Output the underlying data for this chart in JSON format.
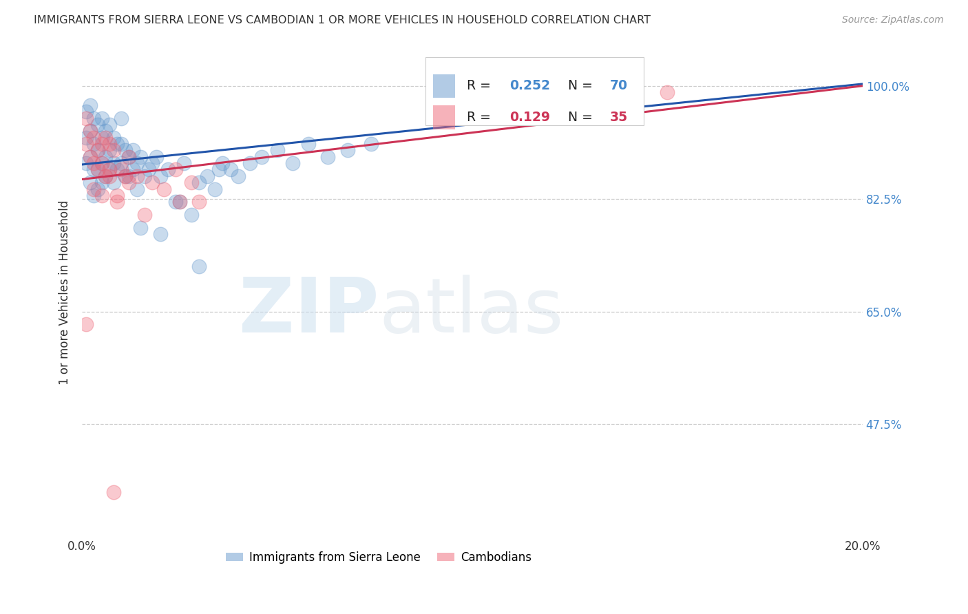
{
  "title": "IMMIGRANTS FROM SIERRA LEONE VS CAMBODIAN 1 OR MORE VEHICLES IN HOUSEHOLD CORRELATION CHART",
  "source": "Source: ZipAtlas.com",
  "ylabel": "1 or more Vehicles in Household",
  "xlim": [
    0.0,
    0.2
  ],
  "ylim": [
    0.3,
    1.06
  ],
  "xtick_labels": [
    "0.0%",
    "20.0%"
  ],
  "ytick_labels": [
    "100.0%",
    "82.5%",
    "65.0%",
    "47.5%"
  ],
  "ytick_values": [
    1.0,
    0.825,
    0.65,
    0.475
  ],
  "grid_color": "#cccccc",
  "background_color": "#ffffff",
  "sierra_leone_color": "#6699cc",
  "cambodian_color": "#ee6677",
  "sierra_leone_N": 70,
  "cambodian_N": 35,
  "sl_line_x": [
    0.0,
    0.2
  ],
  "sl_line_y": [
    0.878,
    1.003
  ],
  "cam_line_x": [
    0.0,
    0.2
  ],
  "cam_line_y": [
    0.855,
    1.0
  ],
  "sierra_leone_x": [
    0.001,
    0.001,
    0.001,
    0.002,
    0.002,
    0.002,
    0.002,
    0.003,
    0.003,
    0.003,
    0.003,
    0.004,
    0.004,
    0.004,
    0.004,
    0.005,
    0.005,
    0.005,
    0.005,
    0.006,
    0.006,
    0.006,
    0.007,
    0.007,
    0.007,
    0.008,
    0.008,
    0.008,
    0.009,
    0.009,
    0.01,
    0.01,
    0.01,
    0.011,
    0.011,
    0.012,
    0.012,
    0.013,
    0.013,
    0.014,
    0.014,
    0.015,
    0.016,
    0.017,
    0.018,
    0.019,
    0.02,
    0.022,
    0.024,
    0.026,
    0.028,
    0.03,
    0.032,
    0.034,
    0.036,
    0.038,
    0.04,
    0.043,
    0.046,
    0.05,
    0.054,
    0.058,
    0.063,
    0.068,
    0.074,
    0.015,
    0.02,
    0.025,
    0.03,
    0.035
  ],
  "sierra_leone_y": [
    0.96,
    0.92,
    0.88,
    0.97,
    0.93,
    0.89,
    0.85,
    0.95,
    0.91,
    0.87,
    0.83,
    0.94,
    0.9,
    0.87,
    0.84,
    0.95,
    0.92,
    0.88,
    0.85,
    0.93,
    0.89,
    0.86,
    0.94,
    0.9,
    0.87,
    0.92,
    0.88,
    0.85,
    0.91,
    0.87,
    0.95,
    0.91,
    0.88,
    0.9,
    0.86,
    0.89,
    0.86,
    0.9,
    0.87,
    0.88,
    0.84,
    0.89,
    0.86,
    0.87,
    0.88,
    0.89,
    0.86,
    0.87,
    0.82,
    0.88,
    0.8,
    0.72,
    0.86,
    0.84,
    0.88,
    0.87,
    0.86,
    0.88,
    0.89,
    0.9,
    0.88,
    0.91,
    0.89,
    0.9,
    0.91,
    0.78,
    0.77,
    0.82,
    0.85,
    0.87
  ],
  "cambodian_x": [
    0.001,
    0.001,
    0.002,
    0.002,
    0.003,
    0.003,
    0.004,
    0.004,
    0.005,
    0.005,
    0.006,
    0.006,
    0.007,
    0.007,
    0.008,
    0.009,
    0.01,
    0.011,
    0.012,
    0.014,
    0.016,
    0.018,
    0.021,
    0.024,
    0.028,
    0.003,
    0.005,
    0.007,
    0.009,
    0.012,
    0.001,
    0.025,
    0.03,
    0.15,
    0.008
  ],
  "cambodian_y": [
    0.95,
    0.91,
    0.93,
    0.89,
    0.92,
    0.88,
    0.9,
    0.87,
    0.91,
    0.88,
    0.92,
    0.86,
    0.91,
    0.87,
    0.9,
    0.83,
    0.87,
    0.86,
    0.89,
    0.86,
    0.8,
    0.85,
    0.84,
    0.87,
    0.85,
    0.84,
    0.83,
    0.86,
    0.82,
    0.85,
    0.63,
    0.82,
    0.82,
    0.99,
    0.37
  ]
}
